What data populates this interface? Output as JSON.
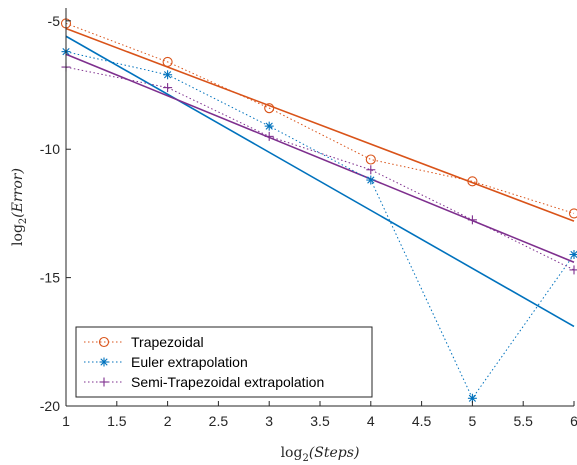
{
  "chart_data": {
    "type": "line",
    "xlabel_base": "log",
    "xlabel_sub": "2",
    "xlabel_arg": "(Steps)",
    "ylabel_base": "log",
    "ylabel_sub": "2",
    "ylabel_arg": "(Error)",
    "xlim": [
      1,
      6
    ],
    "ylim": [
      -20,
      -4.5
    ],
    "xticks": [
      1,
      1.5,
      2,
      2.5,
      3,
      3.5,
      4,
      4.5,
      5,
      5.5,
      6
    ],
    "xtick_labels": [
      "1",
      "1.5",
      "2",
      "2.5",
      "3",
      "3.5",
      "4",
      "4.5",
      "5",
      "5.5",
      "6"
    ],
    "yticks": [
      -20,
      -15,
      -10,
      -5
    ],
    "ytick_labels": [
      "-20",
      "-15",
      "-10",
      "-5"
    ],
    "grid": false,
    "legend_position": "bottom-left",
    "series": [
      {
        "name": "Trapezoidal",
        "color": "#D95319",
        "marker": "circle",
        "x": [
          1,
          2,
          3,
          4,
          5,
          6
        ],
        "y": [
          -5.1,
          -6.6,
          -8.4,
          -10.4,
          -11.25,
          -12.5
        ],
        "fit": [
          [
            1,
            -5.3
          ],
          [
            6,
            -12.8
          ]
        ]
      },
      {
        "name": "Euler extrapolation",
        "color": "#0072BD",
        "marker": "star",
        "x": [
          1,
          2,
          3,
          4,
          5,
          6
        ],
        "y": [
          -6.2,
          -7.1,
          -9.1,
          -11.2,
          -19.7,
          -14.1
        ],
        "fit": [
          [
            1,
            -5.6
          ],
          [
            6,
            -16.9
          ]
        ]
      },
      {
        "name": "Semi-Trapezoidal extrapolation",
        "color": "#7E2F8E",
        "marker": "plus",
        "x": [
          1,
          2,
          3,
          4,
          5,
          6
        ],
        "y": [
          -6.8,
          -7.6,
          -9.5,
          -10.8,
          -12.75,
          -14.7
        ],
        "fit": [
          [
            1,
            -6.3
          ],
          [
            6,
            -14.4
          ]
        ]
      }
    ]
  }
}
